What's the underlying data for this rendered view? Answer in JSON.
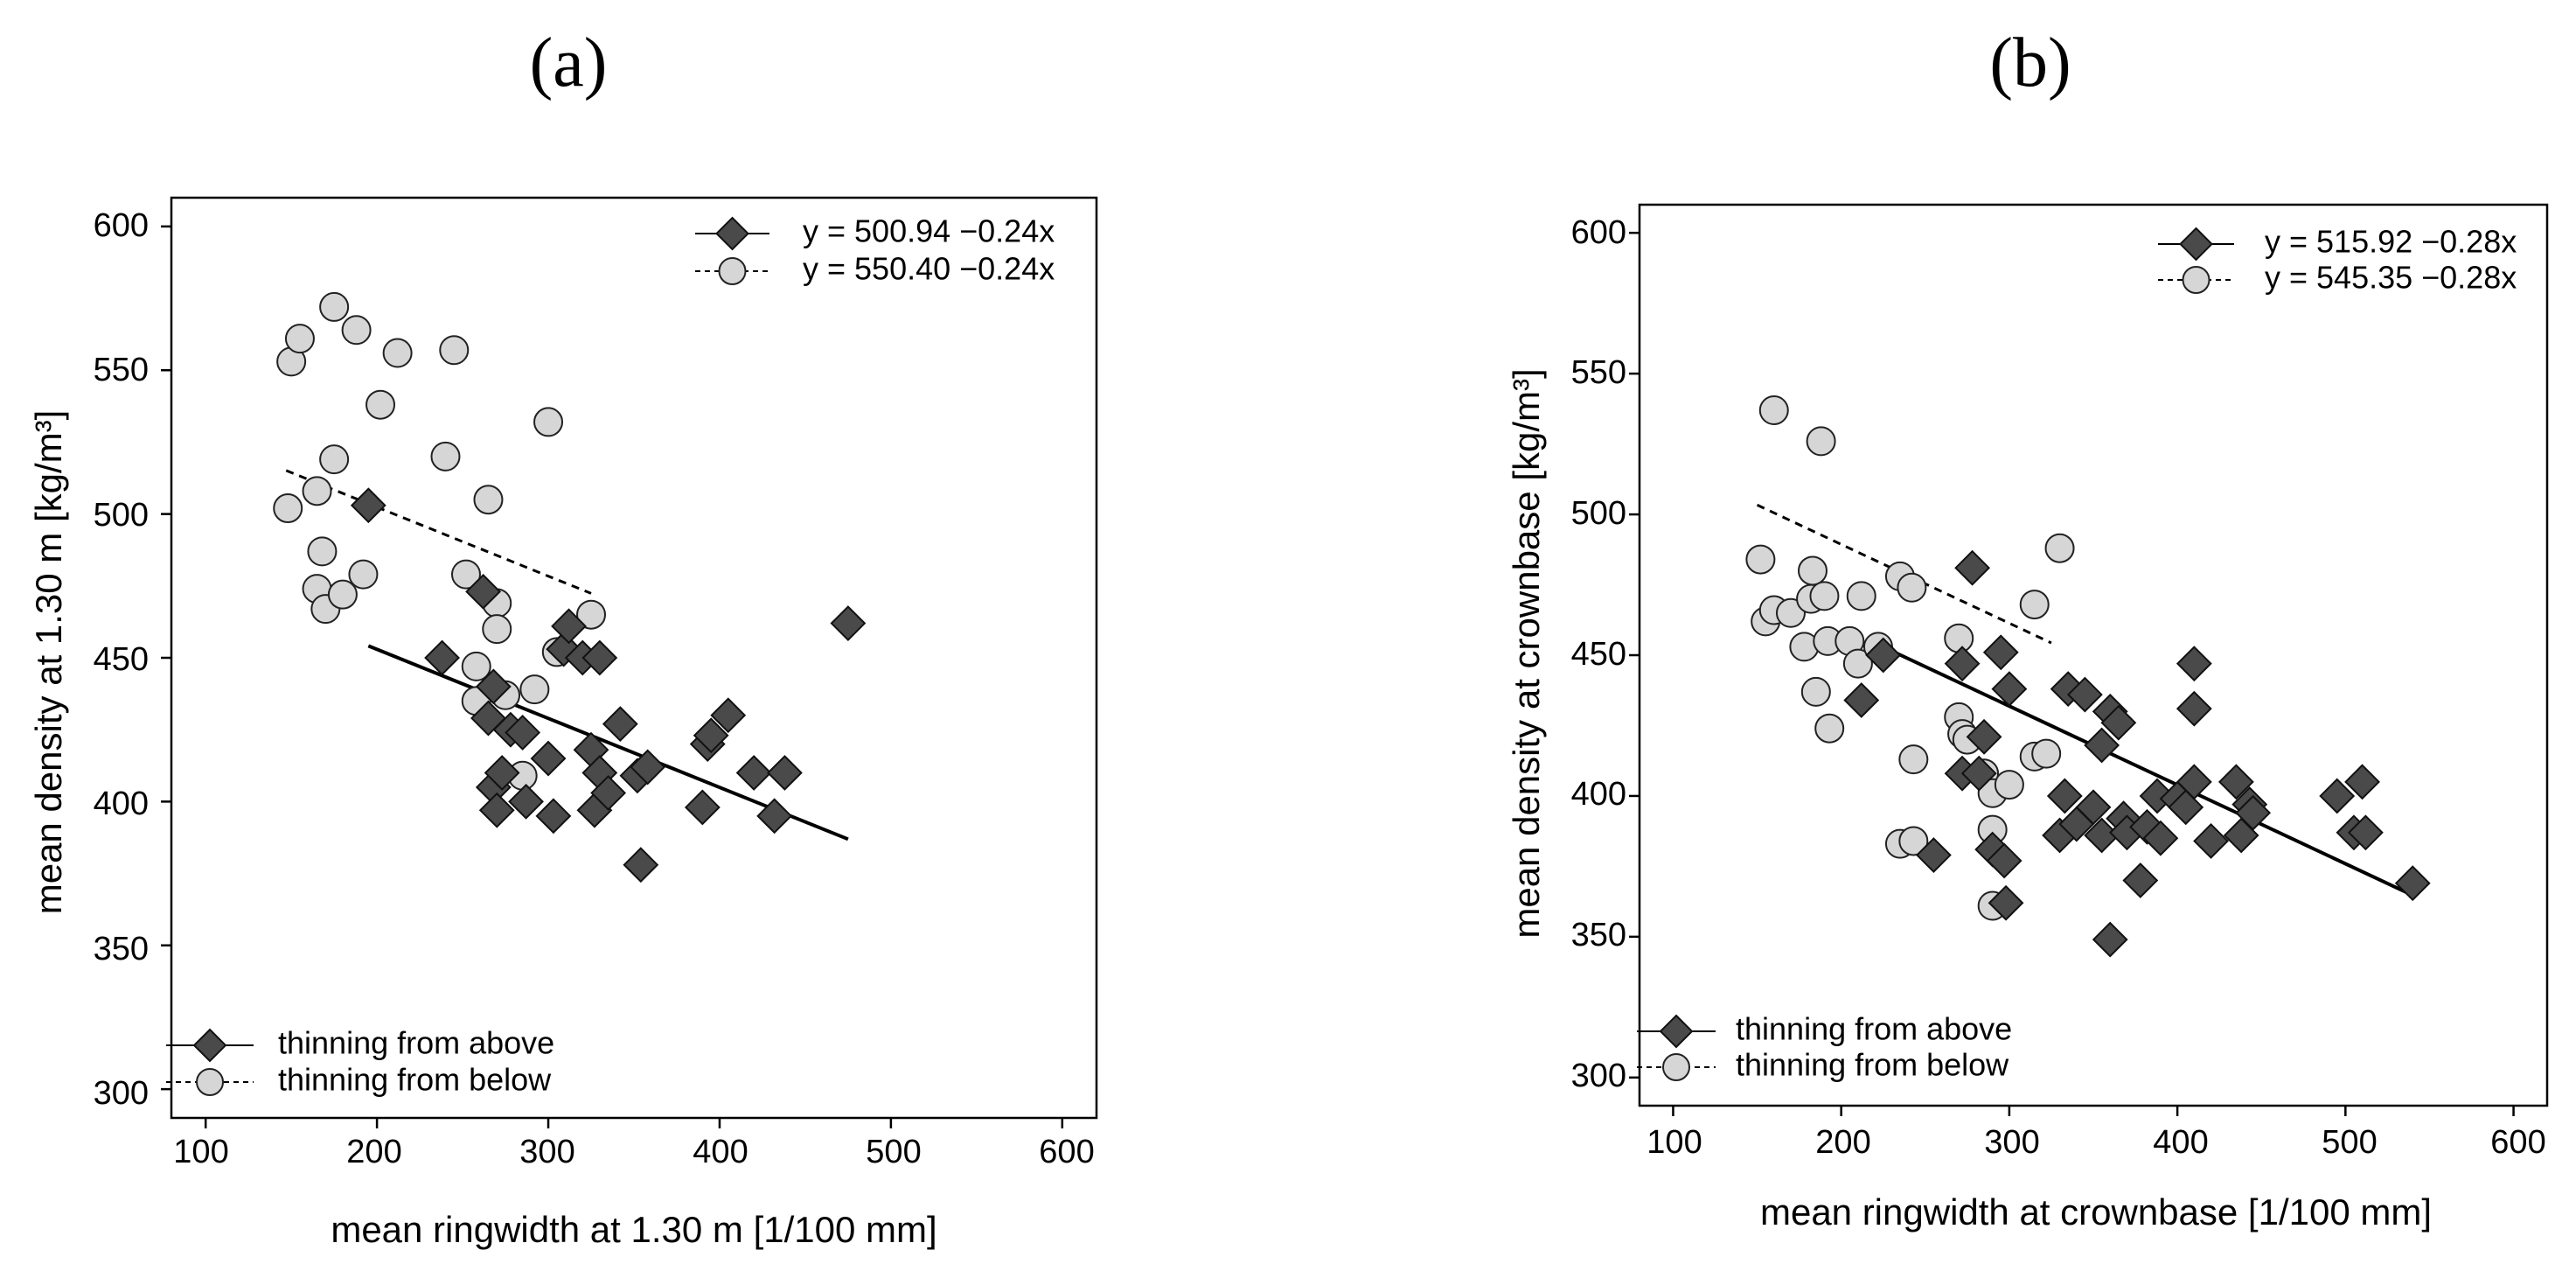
{
  "chart_data": [
    {
      "panel_label": "(a)",
      "type": "scatter",
      "title": "",
      "xlabel": "mean ringwidth at 1.30 m [1/100 mm]",
      "ylabel": "mean density at 1.30 m [kg/m³]",
      "xlim": [
        80,
        620
      ],
      "ylim": [
        290,
        610
      ],
      "xticks": [
        100,
        200,
        300,
        400,
        500,
        600
      ],
      "yticks": [
        300,
        350,
        400,
        450,
        500,
        550,
        600
      ],
      "grid": false,
      "legend_position": "bottom-left",
      "equation_position": "top-right",
      "series": [
        {
          "name": "thinning from above",
          "marker": "diamond",
          "color": "#4a4a4a",
          "line_style": "solid",
          "equation": "y = 500.94 −0.24x",
          "fit": {
            "intercept": 500.94,
            "slope": -0.24,
            "x_range": [
              195,
              475
            ]
          },
          "points": [
            [
              195,
              503
            ],
            [
              238,
              450
            ],
            [
              262,
              473
            ],
            [
              268,
              440
            ],
            [
              265,
              429
            ],
            [
              268,
              405
            ],
            [
              270,
              397
            ],
            [
              273,
              410
            ],
            [
              278,
              425
            ],
            [
              285,
              424
            ],
            [
              287,
              400
            ],
            [
              300,
              415
            ],
            [
              303,
              395
            ],
            [
              309,
              453
            ],
            [
              312,
              461
            ],
            [
              320,
              450
            ],
            [
              330,
              450
            ],
            [
              325,
              418
            ],
            [
              327,
              397
            ],
            [
              330,
              410
            ],
            [
              335,
              403
            ],
            [
              342,
              427
            ],
            [
              352,
              409
            ],
            [
              354,
              378
            ],
            [
              358,
              412
            ],
            [
              390,
              398
            ],
            [
              393,
              420
            ],
            [
              395,
              423
            ],
            [
              405,
              430
            ],
            [
              420,
              410
            ],
            [
              432,
              395
            ],
            [
              438,
              410
            ],
            [
              475,
              462
            ]
          ]
        },
        {
          "name": "thinning from below",
          "marker": "circle",
          "color": "#d6d6d6",
          "line_style": "dotted",
          "equation": "y = 550.40 −0.24x",
          "fit": {
            "intercept": 550.4,
            "slope": -0.24,
            "x_range": [
              147,
              325
            ]
          },
          "points": [
            [
              150,
              553
            ],
            [
              155,
              561
            ],
            [
              175,
              572
            ],
            [
              188,
              564
            ],
            [
              212,
              556
            ],
            [
              245,
              557
            ],
            [
              202,
              538
            ],
            [
              300,
              532
            ],
            [
              240,
              520
            ],
            [
              148,
              502
            ],
            [
              165,
              508
            ],
            [
              175,
              519
            ],
            [
              168,
              487
            ],
            [
              165,
              474
            ],
            [
              170,
              467
            ],
            [
              180,
              472
            ],
            [
              192,
              479
            ],
            [
              252,
              479
            ],
            [
              265,
              505
            ],
            [
              270,
              469
            ],
            [
              270,
              460
            ],
            [
              275,
              437
            ],
            [
              258,
              447
            ],
            [
              258,
              435
            ],
            [
              292,
              439
            ],
            [
              305,
              452
            ],
            [
              325,
              465
            ],
            [
              285,
              409
            ]
          ]
        }
      ]
    },
    {
      "panel_label": "(b)",
      "type": "scatter",
      "title": "",
      "xlabel": "mean ringwidth at crownbase [1/100 mm]",
      "ylabel": "mean density at crownbase [kg/m³]",
      "xlim": [
        80,
        620
      ],
      "ylim": [
        290,
        610
      ],
      "xticks": [
        100,
        200,
        300,
        400,
        500,
        600
      ],
      "yticks": [
        300,
        350,
        400,
        450,
        500,
        550,
        600
      ],
      "grid": false,
      "legend_position": "bottom-left",
      "equation_position": "top-right",
      "series": [
        {
          "name": "thinning from above",
          "marker": "diamond",
          "color": "#4a4a4a",
          "line_style": "solid",
          "equation": "y = 515.92 −0.28x",
          "fit": {
            "intercept": 515.92,
            "slope": -0.28,
            "x_range": [
              218,
              540
            ]
          },
          "points": [
            [
              212,
              434
            ],
            [
              225,
              450
            ],
            [
              255,
              379
            ],
            [
              272,
              447
            ],
            [
              278,
              481
            ],
            [
              272,
              408
            ],
            [
              282,
              408
            ],
            [
              285,
              421
            ],
            [
              290,
              381
            ],
            [
              295,
              451
            ],
            [
              300,
              438
            ],
            [
              297,
              377
            ],
            [
              298,
              362
            ],
            [
              330,
              386
            ],
            [
              333,
              400
            ],
            [
              335,
              438
            ],
            [
              340,
              390
            ],
            [
              345,
              436
            ],
            [
              350,
              396
            ],
            [
              355,
              418
            ],
            [
              355,
              386
            ],
            [
              360,
              430
            ],
            [
              365,
              426
            ],
            [
              368,
              392
            ],
            [
              370,
              387
            ],
            [
              378,
              370
            ],
            [
              382,
              389
            ],
            [
              388,
              400
            ],
            [
              390,
              385
            ],
            [
              400,
              399
            ],
            [
              405,
              396
            ],
            [
              410,
              405
            ],
            [
              410,
              431
            ],
            [
              410,
              447
            ],
            [
              420,
              384
            ],
            [
              435,
              405
            ],
            [
              438,
              386
            ],
            [
              443,
              397
            ],
            [
              445,
              394
            ],
            [
              360,
              349
            ],
            [
              495,
              400
            ],
            [
              505,
              387
            ],
            [
              510,
              405
            ],
            [
              512,
              387
            ],
            [
              540,
              369
            ]
          ]
        },
        {
          "name": "thinning from below",
          "marker": "circle",
          "color": "#d6d6d6",
          "line_style": "dotted",
          "equation": "y = 545.35 −0.28x",
          "fit": {
            "intercept": 545.35,
            "slope": -0.28,
            "x_range": [
              150,
              325
            ]
          },
          "points": [
            [
              160,
              537
            ],
            [
              188,
              526
            ],
            [
              330,
              488
            ],
            [
              152,
              484
            ],
            [
              183,
              480
            ],
            [
              235,
              478
            ],
            [
              242,
              474
            ],
            [
              155,
              462
            ],
            [
              160,
              466
            ],
            [
              170,
              465
            ],
            [
              178,
              453
            ],
            [
              182,
              470
            ],
            [
              190,
              471
            ],
            [
              192,
              455
            ],
            [
              205,
              455
            ],
            [
              210,
              447
            ],
            [
              212,
              471
            ],
            [
              222,
              453
            ],
            [
              185,
              437
            ],
            [
              193,
              424
            ],
            [
              270,
              456
            ],
            [
              315,
              468
            ],
            [
              270,
              428
            ],
            [
              272,
              422
            ],
            [
              275,
              420
            ],
            [
              315,
              414
            ],
            [
              322,
              415
            ],
            [
              285,
              408
            ],
            [
              290,
              401
            ],
            [
              300,
              404
            ],
            [
              243,
              413
            ],
            [
              235,
              383
            ],
            [
              243,
              384
            ],
            [
              290,
              388
            ],
            [
              290,
              361
            ]
          ]
        }
      ]
    }
  ]
}
